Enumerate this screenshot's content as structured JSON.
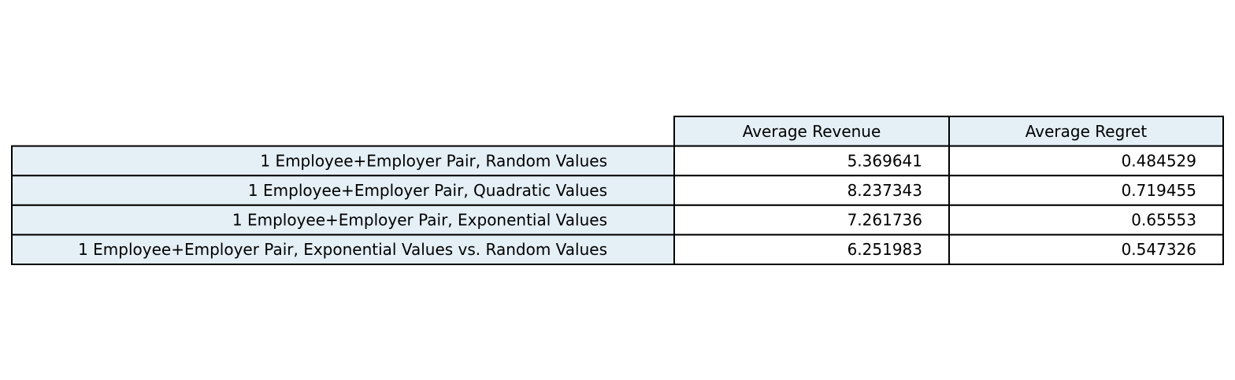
{
  "chart_data": {
    "type": "table",
    "columns": [
      "Average Revenue",
      "Average Regret"
    ],
    "rows": [
      {
        "label": "1 Employee+Employer Pair, Random Values",
        "values": [
          "5.369641",
          "0.484529"
        ]
      },
      {
        "label": "1 Employee+Employer Pair, Quadratic Values",
        "values": [
          "8.237343",
          "0.719455"
        ]
      },
      {
        "label": "1 Employee+Employer Pair, Exponential Values",
        "values": [
          "7.261736",
          "0.65553"
        ]
      },
      {
        "label": "1 Employee+Employer Pair, Exponential Values vs. Random Values",
        "values": [
          "6.251983",
          "0.547326"
        ]
      }
    ],
    "header_color": "#e4eff6",
    "row_label_color": "#e4eff6",
    "cell_color": "#ffffff",
    "border_color": "#000000"
  }
}
